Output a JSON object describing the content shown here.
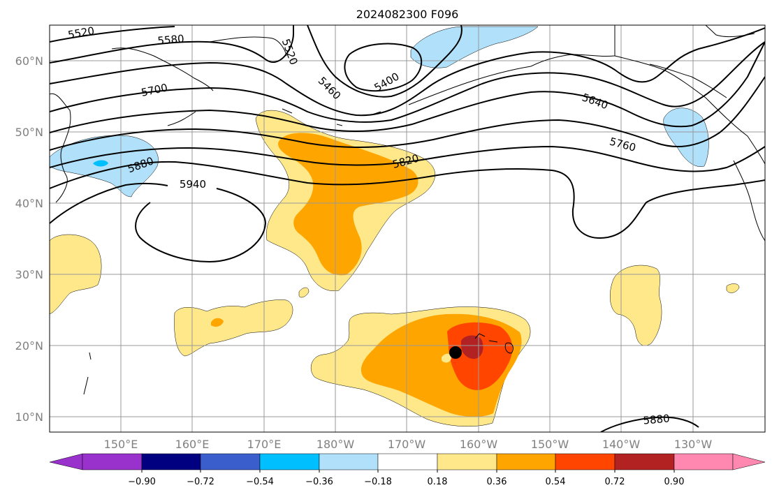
{
  "map": {
    "title": "2024082300 F096",
    "lat_labels": [
      "10°N",
      "20°N",
      "30°N",
      "40°N",
      "50°N",
      "60°N"
    ],
    "lon_labels": [
      "150°E",
      "160°E",
      "170°E",
      "180°W",
      "170°W",
      "160°W",
      "150°W",
      "140°W",
      "130°W"
    ],
    "contour_labels": [
      "5520",
      "5580",
      "5520",
      "5460",
      "5400",
      "5640",
      "5760",
      "5700",
      "5880",
      "5940",
      "5820",
      "5880"
    ],
    "marker": "black dot near Hawaii"
  },
  "colorbar": {
    "ticks": [
      "−0.90",
      "−0.72",
      "−0.54",
      "−0.36",
      "−0.18",
      "0.18",
      "0.36",
      "0.54",
      "0.72",
      "0.90"
    ],
    "colors": {
      "n_090": "#9932CC",
      "n_072": "#000080",
      "n_054": "#3A5FCD",
      "n_036": "#00BFFF",
      "n_018": "#B0E0FA",
      "zero": "#FFFFFF",
      "p_018": "#FFE88A",
      "p_036": "#FFA500",
      "p_054": "#FF4500",
      "p_072": "#B22222",
      "p_090": "#FF88B0"
    }
  }
}
